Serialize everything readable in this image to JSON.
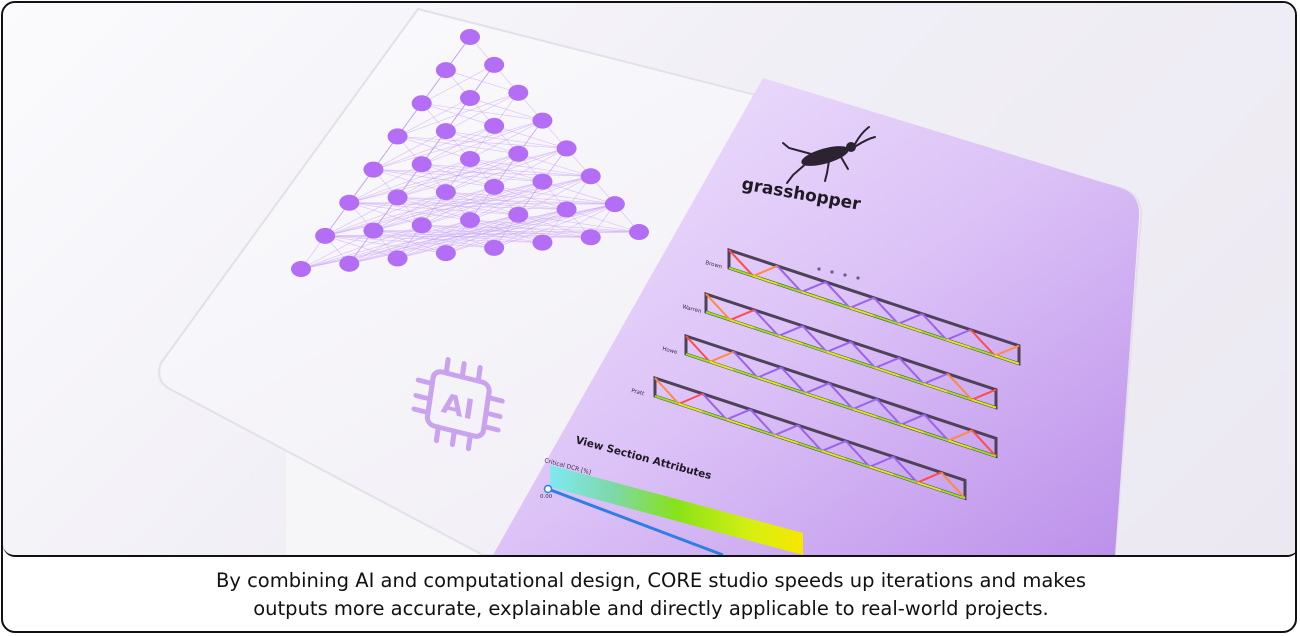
{
  "logo": {
    "name": "grasshopper"
  },
  "panel": {
    "truss_labels": [
      "Brown",
      "Warren",
      "Howe",
      "Pratt"
    ],
    "legend_title": "View Section Attributes",
    "legend_subtitle": "Critical DCR [%]",
    "legend_min": "0.00"
  },
  "chip_icon": {
    "label": "AI",
    "icon": "ai-chip-icon"
  },
  "colors": {
    "node": "#b46ef5",
    "edge": "#c79cf5",
    "panel_light": "#ead9fb",
    "panel_dark": "#b88ae8",
    "chip": "#c9a3ee"
  },
  "caption": {
    "line1": "By combining AI and computational design, CORE studio speeds up iterations and makes",
    "line2": "outputs more accurate, explainable and directly applicable to real-world projects."
  }
}
